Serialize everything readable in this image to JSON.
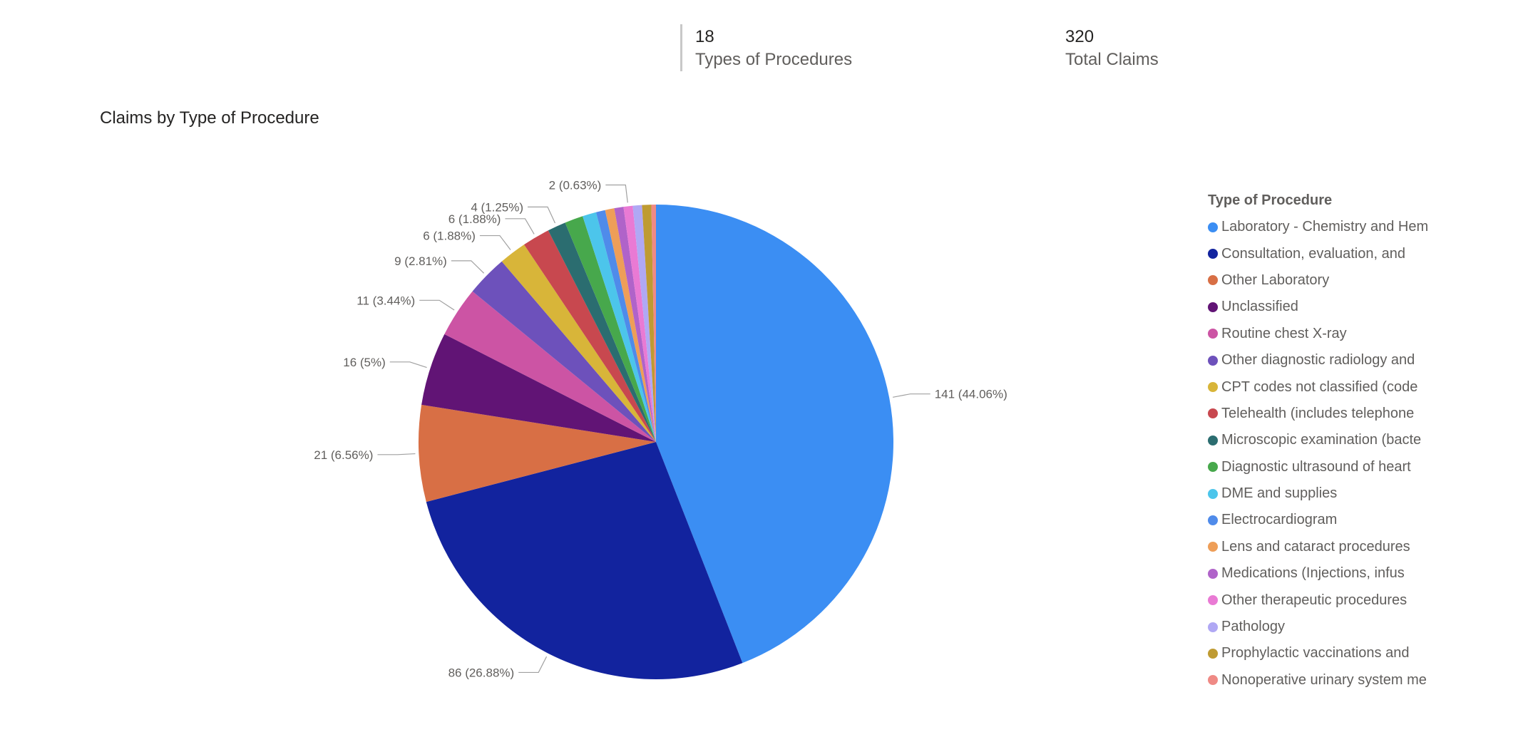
{
  "kpis": [
    {
      "value": "18",
      "label": "Types of Procedures"
    },
    {
      "value": "320",
      "label": "Total Claims"
    }
  ],
  "chart_data": {
    "type": "pie",
    "title": "Claims by Type of Procedure",
    "legend_title": "Type of Procedure",
    "legend_position": "right",
    "slices": [
      {
        "name": "Laboratory - Chemistry and Hem",
        "value": 141,
        "label": "141 (44.06%)",
        "color": "#3b8ef3"
      },
      {
        "name": "Consultation, evaluation, and",
        "value": 86,
        "label": "86 (26.88%)",
        "color": "#12239e"
      },
      {
        "name": "Other Laboratory",
        "value": 21,
        "label": "21 (6.56%)",
        "color": "#d86f45"
      },
      {
        "name": "Unclassified",
        "value": 16,
        "label": "16 (5%)",
        "color": "#611475"
      },
      {
        "name": "Routine chest X-ray",
        "value": 11,
        "label": "11 (3.44%)",
        "color": "#cc54a4"
      },
      {
        "name": "Other diagnostic radiology and",
        "value": 9,
        "label": "9 (2.81%)",
        "color": "#6d51bb"
      },
      {
        "name": "CPT codes not classified (code",
        "value": 6,
        "label": "6 (1.88%)",
        "color": "#d8b539"
      },
      {
        "name": "Telehealth (includes telephone",
        "value": 6,
        "label": "6 (1.88%)",
        "color": "#c8484f"
      },
      {
        "name": "Microscopic examination (bacte",
        "value": 4,
        "label": "4 (1.25%)",
        "color": "#2b6d70"
      },
      {
        "name": "Diagnostic ultrasound of heart",
        "value": 4,
        "label": "",
        "color": "#47a84c"
      },
      {
        "name": "DME and supplies",
        "value": 3,
        "label": "",
        "color": "#4cc5eb"
      },
      {
        "name": "Electrocardiogram",
        "value": 2,
        "label": "",
        "color": "#4f8bea"
      },
      {
        "name": "Lens and cataract procedures",
        "value": 2,
        "label": "",
        "color": "#ee9e58"
      },
      {
        "name": "Medications (Injections, infus",
        "value": 2,
        "label": "",
        "color": "#b063c9"
      },
      {
        "name": "Other therapeutic procedures",
        "value": 2,
        "label": "2 (0.63%)",
        "color": "#e97ad4"
      },
      {
        "name": "Pathology",
        "value": 2,
        "label": "",
        "color": "#b0a8f4"
      },
      {
        "name": "Prophylactic vaccinations and",
        "value": 2,
        "label": "",
        "color": "#bf9b32"
      },
      {
        "name": "Nonoperative urinary system me",
        "value": 1,
        "label": "",
        "color": "#ef8a85"
      }
    ]
  }
}
